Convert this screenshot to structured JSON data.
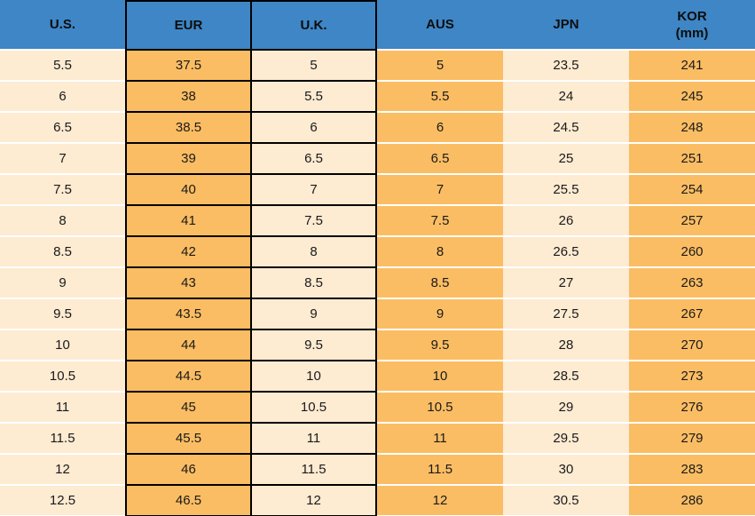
{
  "chart_data": {
    "type": "table",
    "title": "",
    "columns": [
      "U.S.",
      "EUR",
      "U.K.",
      "AUS",
      "JPN",
      "KOR (mm)"
    ],
    "headers": [
      {
        "label": "U.S."
      },
      {
        "label": "EUR"
      },
      {
        "label": "U.K."
      },
      {
        "label": "AUS"
      },
      {
        "label": "JPN"
      },
      {
        "label": "KOR",
        "sublabel": "(mm)"
      }
    ],
    "rows": [
      [
        "5.5",
        "37.5",
        "5",
        "5",
        "23.5",
        "241"
      ],
      [
        "6",
        "38",
        "5.5",
        "5.5",
        "24",
        "245"
      ],
      [
        "6.5",
        "38.5",
        "6",
        "6",
        "24.5",
        "248"
      ],
      [
        "7",
        "39",
        "6.5",
        "6.5",
        "25",
        "251"
      ],
      [
        "7.5",
        "40",
        "7",
        "7",
        "25.5",
        "254"
      ],
      [
        "8",
        "41",
        "7.5",
        "7.5",
        "26",
        "257"
      ],
      [
        "8.5",
        "42",
        "8",
        "8",
        "26.5",
        "260"
      ],
      [
        "9",
        "43",
        "8.5",
        "8.5",
        "27",
        "263"
      ],
      [
        "9.5",
        "43.5",
        "9",
        "9",
        "27.5",
        "267"
      ],
      [
        "10",
        "44",
        "9.5",
        "9.5",
        "28",
        "270"
      ],
      [
        "10.5",
        "44.5",
        "10",
        "10",
        "28.5",
        "273"
      ],
      [
        "11",
        "45",
        "10.5",
        "10.5",
        "29",
        "276"
      ],
      [
        "11.5",
        "45.5",
        "11",
        "11",
        "29.5",
        "279"
      ],
      [
        "12",
        "46",
        "11.5",
        "11.5",
        "30",
        "283"
      ],
      [
        "12.5",
        "46.5",
        "12",
        "12",
        "30.5",
        "286"
      ]
    ],
    "layout": {
      "highlighted_boxed_columns": [
        "EUR",
        "U.K."
      ],
      "cream_columns": [
        "U.S.",
        "U.K.",
        "JPN"
      ],
      "orange_columns": [
        "EUR",
        "AUS",
        "KOR (mm)"
      ]
    }
  },
  "colors": {
    "header_bg": "#3E86C5",
    "header_text": "#0D0D0D",
    "cream": "#FDEBD2",
    "orange": "#FBBD63",
    "border": "#000000",
    "row_separator": "#FFFFFF",
    "cell_text": "#1A1A1A"
  }
}
